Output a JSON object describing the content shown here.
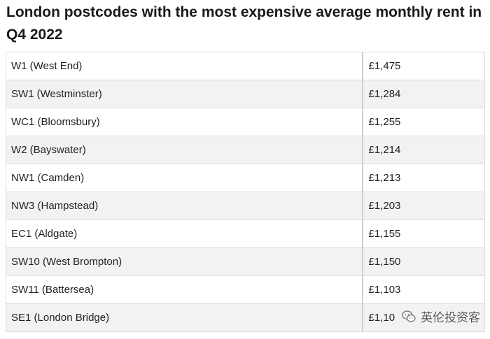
{
  "title": "London postcodes with the most expensive average monthly rent in Q4 2022",
  "rows": [
    {
      "postcode": "W1 (West End)",
      "rent": "£1,475"
    },
    {
      "postcode": "SW1 (Westminster)",
      "rent": "£1,284"
    },
    {
      "postcode": "WC1 (Bloomsbury)",
      "rent": "£1,255"
    },
    {
      "postcode": "W2 (Bayswater)",
      "rent": "£1,214"
    },
    {
      "postcode": "NW1 (Camden)",
      "rent": "£1,213"
    },
    {
      "postcode": "NW3 (Hampstead)",
      "rent": "£1,203"
    },
    {
      "postcode": "EC1 (Aldgate)",
      "rent": "£1,155"
    },
    {
      "postcode": "SW10 (West Brompton)",
      "rent": "£1,150"
    },
    {
      "postcode": "SW11 (Battersea)",
      "rent": "£1,103"
    },
    {
      "postcode": "SE1 (London Bridge)",
      "rent": "£1,10"
    }
  ],
  "watermark": {
    "text": "英伦投资客",
    "icon": "wechat-icon"
  }
}
